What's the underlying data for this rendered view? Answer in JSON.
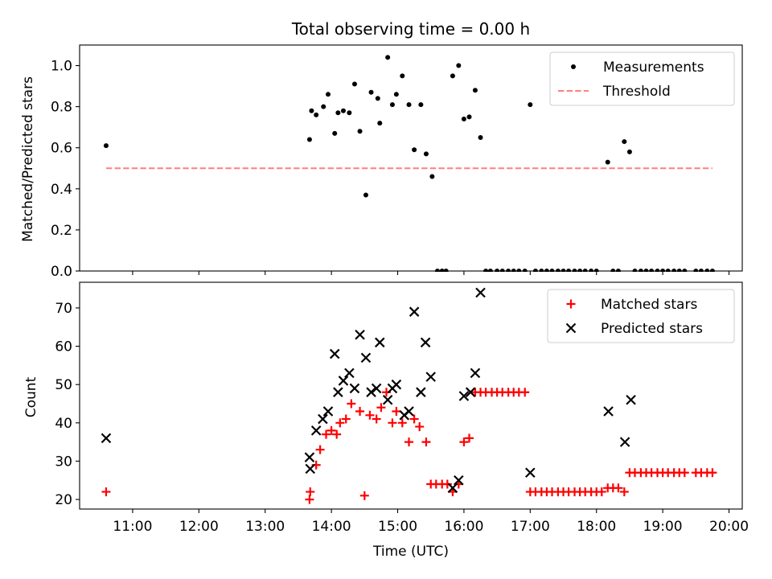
{
  "chart_data": [
    {
      "type": "scatter",
      "title": "Total observing time = 0.00 h",
      "xlabel": "",
      "ylabel": "Matched/Predicted stars",
      "xlim": [
        10.2,
        20.2
      ],
      "ylim": [
        0.0,
        1.1
      ],
      "yticks": [
        0.0,
        0.2,
        0.4,
        0.6,
        0.8,
        1.0
      ],
      "yticklabels": [
        "0.0",
        "0.2",
        "0.4",
        "0.6",
        "0.8",
        "1.0"
      ],
      "legend_position": "top-right",
      "series": [
        {
          "name": "Measurements",
          "marker": "dot",
          "color": "#000000",
          "x": [
            10.6,
            13.67,
            13.7,
            13.77,
            13.88,
            13.95,
            14.05,
            14.1,
            14.18,
            14.27,
            14.35,
            14.43,
            14.52,
            14.6,
            14.7,
            14.73,
            14.85,
            14.92,
            14.98,
            15.07,
            15.17,
            15.25,
            15.35,
            15.43,
            15.52,
            15.6,
            15.67,
            15.73,
            15.83,
            15.92,
            16.0,
            16.08,
            16.17,
            16.25,
            16.33,
            16.4,
            16.5,
            16.58,
            16.67,
            16.75,
            16.83,
            16.92,
            17.0,
            17.08,
            17.17,
            17.25,
            17.33,
            17.42,
            17.5,
            17.58,
            17.67,
            17.75,
            17.83,
            17.92,
            18.0,
            18.17,
            18.25,
            18.33,
            18.42,
            18.5,
            18.58,
            18.67,
            18.75,
            18.83,
            18.92,
            19.0,
            19.08,
            19.17,
            19.25,
            19.33,
            19.5,
            19.58,
            19.67,
            19.75
          ],
          "y": [
            0.61,
            0.64,
            0.78,
            0.76,
            0.8,
            0.86,
            0.67,
            0.77,
            0.78,
            0.77,
            0.91,
            0.68,
            0.37,
            0.87,
            0.84,
            0.72,
            1.04,
            0.81,
            0.86,
            0.95,
            0.81,
            0.59,
            0.81,
            0.57,
            0.46,
            0.0,
            0.0,
            0.0,
            0.95,
            1.0,
            0.74,
            0.75,
            0.88,
            0.65,
            0.0,
            0.0,
            0.0,
            0.0,
            0.0,
            0.0,
            0.0,
            0.0,
            0.81,
            0.0,
            0.0,
            0.0,
            0.0,
            0.0,
            0.0,
            0.0,
            0.0,
            0.0,
            0.0,
            0.0,
            0.0,
            0.53,
            0.0,
            0.0,
            0.63,
            0.58,
            0.0,
            0.0,
            0.0,
            0.0,
            0.0,
            0.0,
            0.0,
            0.0,
            0.0,
            0.0,
            0.0,
            0.0,
            0.0,
            0.0
          ]
        },
        {
          "name": "Threshold",
          "style": "dashed",
          "color": "#ff7f7f",
          "x": [
            10.6,
            19.75
          ],
          "y": [
            0.5,
            0.5
          ]
        }
      ]
    },
    {
      "type": "scatter",
      "title": "",
      "xlabel": "Time (UTC)",
      "ylabel": "Count",
      "xlim": [
        10.2,
        20.2
      ],
      "ylim": [
        17.5,
        76.7
      ],
      "xticks": [
        11,
        12,
        13,
        14,
        15,
        16,
        17,
        18,
        19,
        20
      ],
      "xticklabels": [
        "11:00",
        "12:00",
        "13:00",
        "14:00",
        "15:00",
        "16:00",
        "17:00",
        "18:00",
        "19:00",
        "20:00"
      ],
      "yticks": [
        20,
        30,
        40,
        50,
        60,
        70
      ],
      "yticklabels": [
        "20",
        "30",
        "40",
        "50",
        "60",
        "70"
      ],
      "legend_position": "top-right",
      "series": [
        {
          "name": "Matched stars",
          "marker": "plus",
          "color": "#ff0000",
          "x": [
            10.6,
            13.67,
            13.68,
            13.77,
            13.83,
            13.92,
            14.0,
            14.08,
            14.13,
            14.22,
            14.3,
            14.43,
            14.5,
            14.58,
            14.68,
            14.75,
            14.83,
            14.92,
            14.98,
            15.07,
            15.17,
            15.25,
            15.33,
            15.43,
            15.5,
            15.58,
            15.67,
            15.75,
            15.83,
            15.92,
            16.0,
            16.08,
            16.17,
            16.25,
            16.33,
            16.42,
            16.5,
            16.58,
            16.67,
            16.75,
            16.83,
            16.92,
            17.0,
            17.08,
            17.17,
            17.25,
            17.33,
            17.42,
            17.5,
            17.58,
            17.67,
            17.75,
            17.83,
            17.92,
            18.0,
            18.08,
            18.17,
            18.25,
            18.33,
            18.42,
            18.5,
            18.58,
            18.67,
            18.75,
            18.83,
            18.92,
            19.0,
            19.08,
            19.17,
            19.25,
            19.33,
            19.5,
            19.58,
            19.67,
            19.75
          ],
          "y": [
            22,
            20,
            22,
            29,
            33,
            37,
            38,
            37,
            40,
            41,
            45,
            43,
            21,
            42,
            41,
            44,
            48,
            40,
            43,
            40,
            35,
            41,
            39,
            35,
            24,
            24,
            24,
            24,
            22,
            24,
            35,
            36,
            48,
            48,
            48,
            48,
            48,
            48,
            48,
            48,
            48,
            48,
            22,
            22,
            22,
            22,
            22,
            22,
            22,
            22,
            22,
            22,
            22,
            22,
            22,
            22,
            23,
            23,
            23,
            22,
            27,
            27,
            27,
            27,
            27,
            27,
            27,
            27,
            27,
            27,
            27,
            27,
            27,
            27,
            27
          ]
        },
        {
          "name": "Predicted stars",
          "marker": "x",
          "color": "#000000",
          "x": [
            10.6,
            13.67,
            13.68,
            13.77,
            13.87,
            13.95,
            14.05,
            14.1,
            14.18,
            14.27,
            14.35,
            14.43,
            14.52,
            14.6,
            14.68,
            14.73,
            14.85,
            14.92,
            14.98,
            15.1,
            15.17,
            15.25,
            15.35,
            15.42,
            15.5,
            15.83,
            15.92,
            16.0,
            16.1,
            16.17,
            16.25,
            17.0,
            18.18,
            18.43,
            18.52
          ],
          "y": [
            36,
            31,
            28,
            38,
            41,
            43,
            58,
            48,
            51,
            53,
            49,
            63,
            57,
            48,
            49,
            61,
            46,
            49,
            50,
            42,
            43,
            69,
            48,
            61,
            52,
            23,
            25,
            47,
            48,
            53,
            74,
            27,
            43,
            35,
            46
          ]
        }
      ]
    }
  ]
}
